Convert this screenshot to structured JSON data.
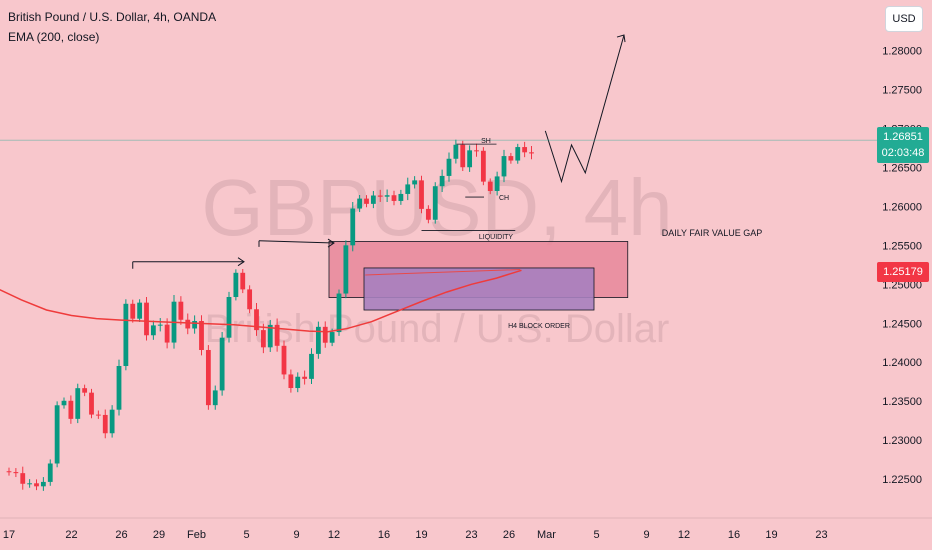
{
  "header": {
    "title": "British Pound / U.S. Dollar, 4h, OANDA",
    "indicator": "EMA (200, close)",
    "currency_button": "USD"
  },
  "watermark": {
    "symbol": "GBPUSD, 4h",
    "name": "British Pound / U.S. Dollar"
  },
  "price_tags": {
    "current_price": "1.26851",
    "countdown": "02:03:48",
    "ema_price": "1.25179"
  },
  "annotations": {
    "sh": "SH",
    "ch": "CH",
    "liquidity": "LIQUIDITY",
    "fvg": "DAILY FAIR VALUE GAP",
    "order_block": "H4 BLOCK ORDER"
  },
  "colors": {
    "background": "#f8c7cc",
    "bull": "#089981",
    "bear": "#f23645",
    "ema": "#ef3b3b",
    "fvg_fill": "#e8879a",
    "order_block_fill": "#a77fbf",
    "current_price_tag": "#22ab94",
    "ema_price_tag": "#f23645"
  },
  "chart_data": {
    "type": "candlestick",
    "symbol": "GBPUSD",
    "timeframe": "4h",
    "y_axis": {
      "range": [
        1.22,
        1.2865
      ],
      "ticks": [
        "1.28000",
        "1.27500",
        "1.27000",
        "1.26500",
        "1.26000",
        "1.25500",
        "1.25000",
        "1.24500",
        "1.24000",
        "1.23500",
        "1.23000",
        "1.22500"
      ]
    },
    "x_axis": {
      "ticks": [
        "17",
        "22",
        "26",
        "29",
        "Feb",
        "5",
        "9",
        "12",
        "16",
        "19",
        "23",
        "26",
        "Mar",
        "5",
        "9",
        "12",
        "16",
        "19",
        "23"
      ]
    },
    "current_price": 1.26851,
    "ema_current": 1.25179,
    "price_path": [
      [
        17,
        1.226
      ],
      [
        19.5,
        1.224
      ],
      [
        20.5,
        1.228
      ],
      [
        21,
        1.237
      ],
      [
        22,
        1.232
      ],
      [
        22.8,
        1.239
      ],
      [
        23.3,
        1.233
      ],
      [
        24,
        1.234
      ],
      [
        24.8,
        1.231
      ],
      [
        25.5,
        1.236
      ],
      [
        26,
        1.243
      ],
      [
        26.5,
        1.249
      ],
      [
        27,
        1.245
      ],
      [
        27.5,
        1.248
      ],
      [
        28,
        1.244
      ],
      [
        29,
        1.246
      ],
      [
        29.7,
        1.243
      ],
      [
        30.2,
        1.247
      ],
      [
        31,
        1.244
      ],
      [
        31.6,
        1.246
      ],
      [
        32.2,
        1.243
      ],
      [
        32.6,
        1.239
      ],
      [
        33.1,
        1.232
      ],
      [
        33.6,
        1.237
      ],
      [
        34,
        1.242
      ],
      [
        34.5,
        1.248
      ],
      [
        35,
        1.252
      ],
      [
        35.5,
        1.25
      ],
      [
        36,
        1.248
      ],
      [
        36.5,
        1.246
      ],
      [
        37,
        1.244
      ],
      [
        37.5,
        1.242
      ],
      [
        38,
        1.245
      ],
      [
        38.5,
        1.241
      ],
      [
        39,
        1.238
      ],
      [
        39.5,
        1.236
      ],
      [
        40,
        1.239
      ],
      [
        40.5,
        1.236
      ],
      [
        41,
        1.24
      ],
      [
        41.5,
        1.244
      ],
      [
        42,
        1.246
      ],
      [
        42.5,
        1.241
      ],
      [
        43,
        1.245
      ],
      [
        43.5,
        1.25
      ],
      [
        44,
        1.256
      ],
      [
        44.5,
        1.259
      ],
      [
        45,
        1.261
      ],
      [
        45.5,
        1.26
      ],
      [
        46,
        1.262
      ],
      [
        46.5,
        1.261
      ],
      [
        47,
        1.263
      ],
      [
        47.5,
        1.261
      ],
      [
        48,
        1.26
      ],
      [
        48.5,
        1.262
      ],
      [
        49,
        1.264
      ],
      [
        49.5,
        1.263
      ],
      [
        50,
        1.26
      ],
      [
        50.5,
        1.258
      ],
      [
        51,
        1.262
      ],
      [
        51.5,
        1.264
      ],
      [
        52,
        1.266
      ],
      [
        52.5,
        1.268
      ],
      [
        53,
        1.267
      ],
      [
        53.5,
        1.264
      ],
      [
        54,
        1.268
      ],
      [
        54.5,
        1.266
      ],
      [
        55,
        1.263
      ],
      [
        55.5,
        1.262
      ],
      [
        56,
        1.264
      ],
      [
        56.5,
        1.266
      ],
      [
        57,
        1.265
      ],
      [
        57.5,
        1.268
      ],
      [
        58,
        1.267
      ],
      [
        58.5,
        1.266
      ],
      [
        59,
        1.2685
      ]
    ],
    "ema_path": [
      [
        14,
        1.251
      ],
      [
        16,
        1.2495
      ],
      [
        18,
        1.248
      ],
      [
        20,
        1.2467
      ],
      [
        22,
        1.246
      ],
      [
        24,
        1.2456
      ],
      [
        26,
        1.2454
      ],
      [
        29,
        1.2452
      ],
      [
        32,
        1.245
      ],
      [
        35,
        1.2448
      ],
      [
        38,
        1.2444
      ],
      [
        41,
        1.244
      ],
      [
        42.5,
        1.2439
      ],
      [
        44,
        1.2443
      ],
      [
        46,
        1.2452
      ],
      [
        48,
        1.2465
      ],
      [
        50,
        1.2478
      ],
      [
        52,
        1.249
      ],
      [
        54,
        1.25
      ],
      [
        56,
        1.2508
      ],
      [
        58,
        1.2518
      ]
    ],
    "zones": [
      {
        "name": "DAILY FAIR VALUE GAP",
        "x": [
          42.6,
          66.5
        ],
        "y": [
          1.2483,
          1.2555
        ]
      },
      {
        "name": "H4 BLOCK ORDER",
        "x": [
          45.4,
          63.8
        ],
        "y": [
          1.2467,
          1.2521
        ]
      }
    ],
    "projection_path": [
      [
        59.9,
        1.2697
      ],
      [
        61.2,
        1.2632
      ],
      [
        62.0,
        1.2679
      ],
      [
        63.1,
        1.2643
      ],
      [
        66.2,
        1.282
      ]
    ]
  }
}
